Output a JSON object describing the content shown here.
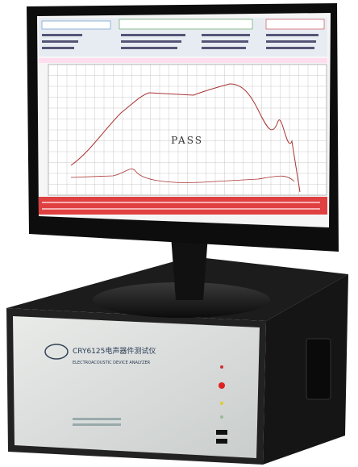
{
  "screen": {
    "status": "PASS"
  },
  "device": {
    "model": "CRY6125电声器件测试仪",
    "subtitle": "ELECTROACOUSTIC DEVICE ANALYZER"
  }
}
